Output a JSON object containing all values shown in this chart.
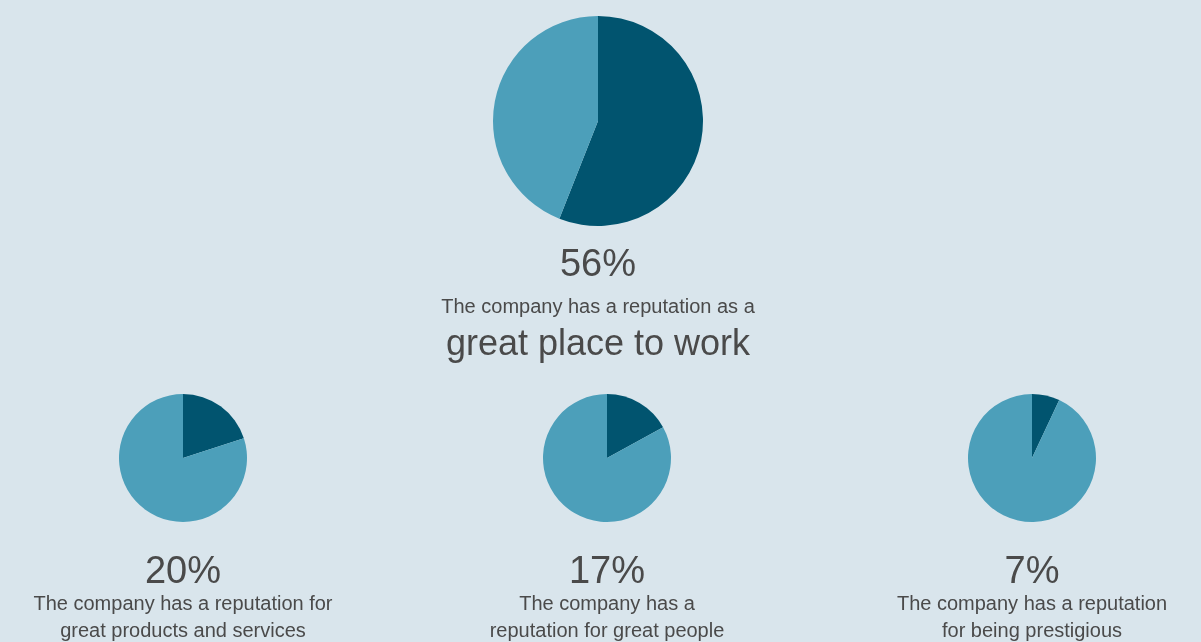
{
  "chart_data": [
    {
      "type": "pie",
      "categories": [
        null,
        null
      ],
      "values": [
        56,
        44
      ],
      "colors": [
        "#01546f",
        "#4c9fba"
      ],
      "annotations": [
        "56%",
        "The company has a reputation as a",
        "great place to work"
      ]
    },
    {
      "type": "pie",
      "categories": [
        null,
        null
      ],
      "values": [
        20,
        80
      ],
      "colors": [
        "#01546f",
        "#4c9fba"
      ],
      "annotations": [
        "20%",
        "The company has a reputation for",
        "great products and services"
      ]
    },
    {
      "type": "pie",
      "categories": [
        null,
        null
      ],
      "values": [
        17,
        83
      ],
      "colors": [
        "#01546f",
        "#4c9fba"
      ],
      "annotations": [
        "17%",
        "The company has a",
        "reputation for great people"
      ]
    },
    {
      "type": "pie",
      "categories": [
        null,
        null
      ],
      "values": [
        7,
        93
      ],
      "colors": [
        "#01546f",
        "#4c9fba"
      ],
      "annotations": [
        "7%",
        "The company has a reputation",
        "for being prestigious"
      ]
    }
  ]
}
